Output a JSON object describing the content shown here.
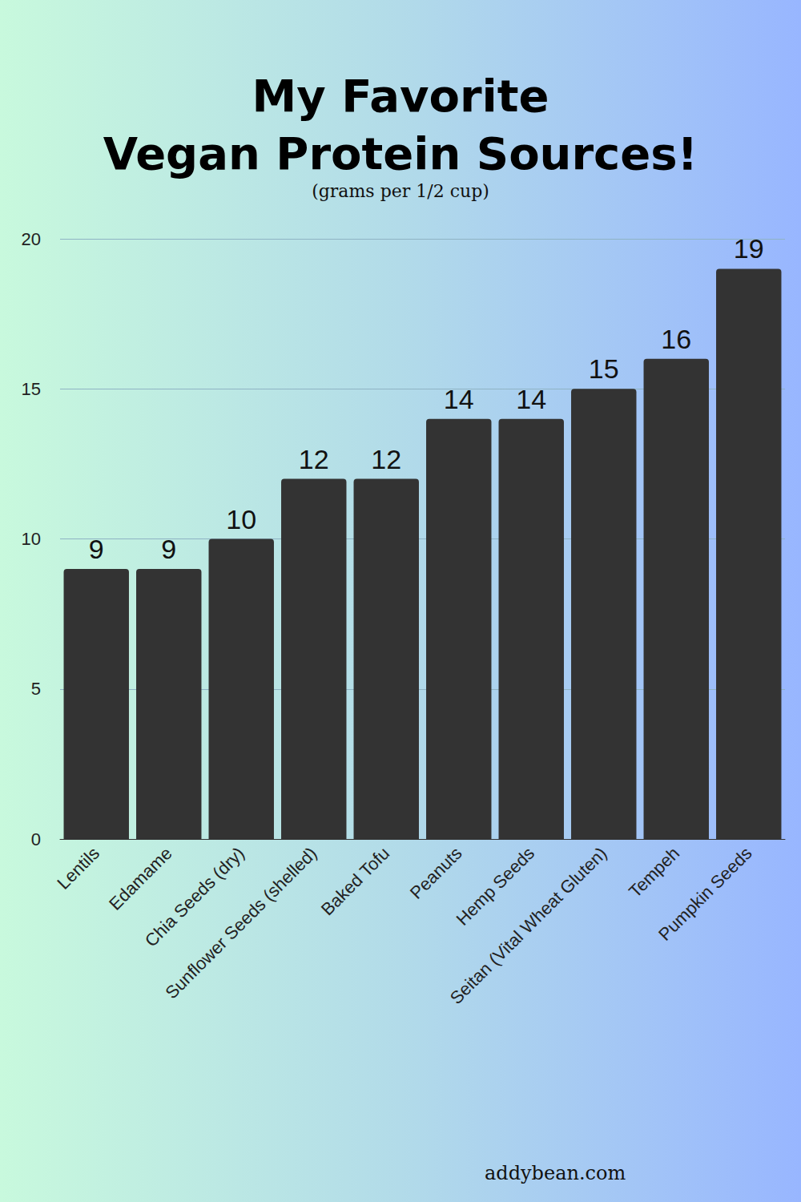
{
  "chart_data": {
    "type": "bar",
    "title": "My Favorite\nVegan Protein Sources!",
    "subtitle": "(grams per 1/2 cup)",
    "annotations": [
      "addybean.com"
    ],
    "categories": [
      "Lentils",
      "Edamame",
      "Chia Seeds (dry)",
      "Sunflower Seeds (shelled)",
      "Baked Tofu",
      "Peanuts",
      "Hemp Seeds",
      "Seitan (Vital Wheat Gluten)",
      "Tempeh",
      "Pumpkin Seeds"
    ],
    "values": [
      9,
      9,
      10,
      12,
      12,
      14,
      14,
      15,
      16,
      19
    ],
    "color": "#333333",
    "ylim": [
      0,
      20
    ],
    "yticks": [
      0,
      5,
      10,
      15,
      20
    ],
    "grid": true,
    "data_labels": true
  }
}
